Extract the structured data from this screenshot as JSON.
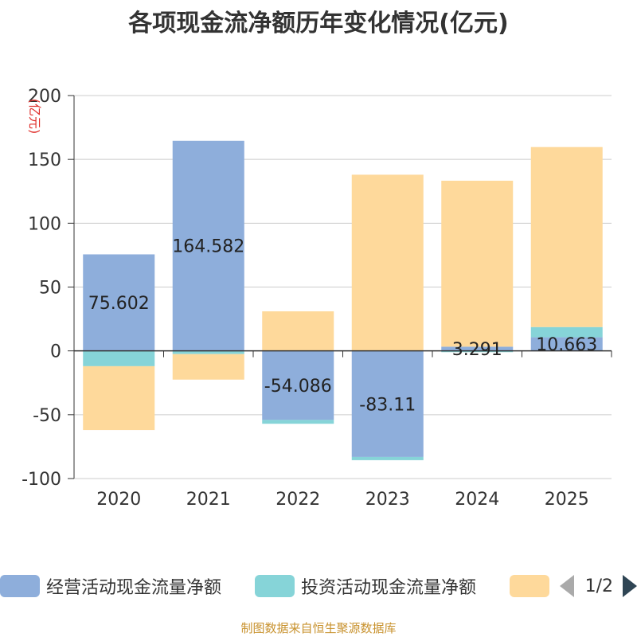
{
  "title": "各项现金流净额历年变化情况(亿元)",
  "source": "制图数据来自恒生聚源数据库",
  "legend": {
    "items": [
      {
        "label": "经营活动现金流量净额",
        "color": "#8eaedb"
      },
      {
        "label": "投资活动现金流量净额",
        "color": "#86d4d8"
      },
      {
        "label": "",
        "color": "#fed99b"
      }
    ],
    "page": "1/2"
  },
  "chart_data": {
    "type": "bar",
    "stacked": true,
    "title": "各项现金流净额历年变化情况(亿元)",
    "ylabel": "(亿元)",
    "xlabel": "",
    "ylim": [
      -100,
      200
    ],
    "yticks": [
      200,
      150,
      100,
      50,
      0,
      -50,
      -100
    ],
    "grid": true,
    "categories": [
      "2020",
      "2021",
      "2022",
      "2023",
      "2024",
      "2025"
    ],
    "series": [
      {
        "name": "经营活动现金流量净额",
        "color": "#8eaedb",
        "values": [
          75.602,
          164.582,
          -54.086,
          -83.11,
          3.291,
          10.663
        ],
        "labels": [
          "75.602",
          "164.582",
          "-54.086",
          "-83.11",
          "3.291",
          "10.663"
        ]
      },
      {
        "name": "投资活动现金流量净额",
        "color": "#86d4d8",
        "values": [
          -12,
          -2.5,
          -3,
          -2.5,
          -1,
          8
        ]
      },
      {
        "name": "",
        "color": "#fed99b",
        "values": [
          -50,
          -20,
          31,
          138,
          130,
          141
        ]
      }
    ]
  }
}
